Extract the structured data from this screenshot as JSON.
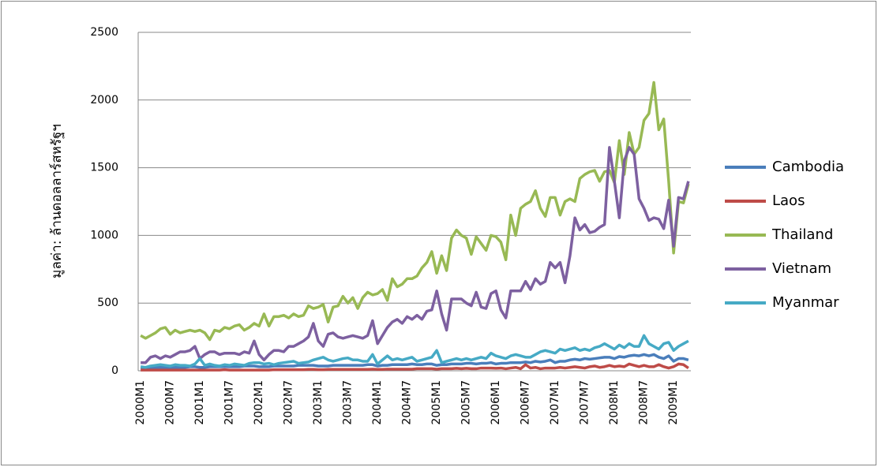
{
  "chart_data": {
    "type": "line",
    "y_label": "มูลค่า: ล้านดอลลาร์สหรัฐฯ",
    "categories": [
      "2000M1",
      null,
      null,
      null,
      null,
      null,
      "2000M7",
      null,
      null,
      null,
      null,
      null,
      "2001M1",
      null,
      null,
      null,
      null,
      null,
      "2001M7",
      null,
      null,
      null,
      null,
      null,
      "2002M1",
      null,
      null,
      null,
      null,
      null,
      "2002M7",
      null,
      null,
      null,
      null,
      null,
      "2003M1",
      null,
      null,
      null,
      null,
      null,
      "2003M7",
      null,
      null,
      null,
      null,
      null,
      "2004M1",
      null,
      null,
      null,
      null,
      null,
      "2004M7",
      null,
      null,
      null,
      null,
      null,
      "2005M1",
      null,
      null,
      null,
      null,
      null,
      "2005M7",
      null,
      null,
      null,
      null,
      null,
      "2006M1",
      null,
      null,
      null,
      null,
      null,
      "2006M7",
      null,
      null,
      null,
      null,
      null,
      "2007M1",
      null,
      null,
      null,
      null,
      null,
      "2007M7",
      null,
      null,
      null,
      null,
      null,
      "2008M1",
      null,
      null,
      null,
      null,
      null,
      "2008M7",
      null,
      null,
      null,
      null,
      null,
      "2009M1",
      null,
      null,
      null
    ],
    "series": [
      {
        "name": "Cambodia",
        "color": "#4a7ebb",
        "values": [
          20,
          20,
          20,
          25,
          25,
          25,
          20,
          25,
          25,
          25,
          30,
          30,
          25,
          25,
          30,
          30,
          30,
          30,
          30,
          30,
          30,
          35,
          35,
          35,
          30,
          30,
          30,
          35,
          35,
          35,
          35,
          35,
          40,
          40,
          40,
          40,
          35,
          35,
          35,
          40,
          40,
          40,
          40,
          40,
          40,
          40,
          45,
          45,
          35,
          40,
          40,
          45,
          45,
          45,
          45,
          50,
          45,
          45,
          50,
          50,
          40,
          45,
          45,
          50,
          50,
          50,
          55,
          55,
          50,
          55,
          55,
          60,
          50,
          55,
          55,
          60,
          60,
          60,
          65,
          60,
          70,
          65,
          70,
          80,
          60,
          70,
          70,
          80,
          85,
          80,
          90,
          85,
          90,
          95,
          100,
          100,
          90,
          105,
          100,
          110,
          115,
          110,
          120,
          110,
          120,
          100,
          90,
          110,
          70,
          90,
          90,
          80
        ]
      },
      {
        "name": "Laos",
        "color": "#be4b48",
        "values": [
          5,
          5,
          5,
          5,
          5,
          5,
          5,
          5,
          5,
          5,
          5,
          5,
          5,
          5,
          5,
          5,
          5,
          8,
          5,
          5,
          5,
          5,
          5,
          5,
          5,
          5,
          5,
          8,
          8,
          8,
          8,
          8,
          8,
          8,
          10,
          10,
          8,
          8,
          10,
          10,
          10,
          10,
          10,
          10,
          10,
          10,
          10,
          12,
          10,
          10,
          12,
          12,
          12,
          12,
          12,
          12,
          15,
          15,
          15,
          15,
          12,
          15,
          15,
          15,
          18,
          15,
          18,
          15,
          15,
          20,
          20,
          20,
          18,
          20,
          15,
          20,
          25,
          15,
          45,
          20,
          25,
          15,
          20,
          20,
          20,
          25,
          20,
          25,
          30,
          25,
          20,
          30,
          35,
          25,
          30,
          40,
          30,
          35,
          30,
          50,
          40,
          30,
          40,
          30,
          30,
          45,
          30,
          20,
          30,
          50,
          45,
          20
        ]
      },
      {
        "name": "Thailand",
        "color": "#98b954",
        "values": [
          260,
          240,
          260,
          280,
          310,
          320,
          270,
          300,
          280,
          290,
          300,
          290,
          300,
          280,
          230,
          300,
          290,
          320,
          310,
          330,
          340,
          300,
          320,
          350,
          330,
          420,
          330,
          400,
          400,
          410,
          390,
          420,
          400,
          410,
          480,
          460,
          470,
          490,
          360,
          470,
          480,
          550,
          500,
          540,
          460,
          540,
          580,
          560,
          570,
          600,
          520,
          680,
          620,
          640,
          680,
          680,
          700,
          760,
          800,
          880,
          720,
          850,
          740,
          980,
          1040,
          1000,
          980,
          860,
          990,
          940,
          890,
          1000,
          990,
          950,
          820,
          1150,
          1000,
          1200,
          1230,
          1250,
          1330,
          1200,
          1140,
          1280,
          1280,
          1150,
          1250,
          1270,
          1250,
          1420,
          1450,
          1470,
          1480,
          1400,
          1470,
          1480,
          1390,
          1700,
          1450,
          1760,
          1600,
          1650,
          1850,
          1900,
          2130,
          1780,
          1860,
          1400,
          870,
          1250,
          1240,
          1380
        ]
      },
      {
        "name": "Vietnam",
        "color": "#7d60a0",
        "values": [
          60,
          60,
          100,
          110,
          90,
          110,
          100,
          120,
          140,
          140,
          150,
          180,
          90,
          120,
          140,
          140,
          120,
          130,
          130,
          130,
          120,
          140,
          130,
          220,
          120,
          80,
          120,
          150,
          150,
          140,
          180,
          180,
          200,
          220,
          250,
          350,
          220,
          180,
          270,
          280,
          250,
          240,
          250,
          260,
          250,
          240,
          260,
          370,
          200,
          260,
          320,
          360,
          380,
          350,
          400,
          380,
          410,
          380,
          440,
          450,
          590,
          420,
          300,
          530,
          530,
          530,
          500,
          480,
          580,
          470,
          460,
          570,
          590,
          450,
          390,
          590,
          590,
          590,
          660,
          600,
          680,
          640,
          660,
          800,
          760,
          800,
          650,
          850,
          1130,
          1040,
          1080,
          1020,
          1030,
          1060,
          1080,
          1650,
          1400,
          1130,
          1550,
          1650,
          1600,
          1270,
          1200,
          1110,
          1130,
          1120,
          1050,
          1260,
          920,
          1280,
          1270,
          1400
        ]
      },
      {
        "name": "Myanmar",
        "color": "#46aac5",
        "values": [
          30,
          25,
          35,
          40,
          45,
          40,
          35,
          45,
          40,
          40,
          35,
          50,
          90,
          40,
          50,
          40,
          35,
          45,
          40,
          50,
          45,
          40,
          55,
          60,
          60,
          50,
          55,
          45,
          55,
          60,
          65,
          70,
          55,
          60,
          65,
          80,
          90,
          100,
          80,
          70,
          80,
          90,
          95,
          80,
          80,
          70,
          70,
          120,
          50,
          80,
          110,
          80,
          90,
          80,
          90,
          100,
          70,
          80,
          90,
          100,
          150,
          60,
          70,
          80,
          90,
          80,
          90,
          80,
          90,
          100,
          90,
          130,
          110,
          100,
          90,
          110,
          120,
          110,
          100,
          100,
          120,
          140,
          150,
          140,
          130,
          160,
          150,
          160,
          170,
          150,
          160,
          150,
          170,
          180,
          200,
          180,
          160,
          190,
          170,
          200,
          180,
          180,
          260,
          200,
          180,
          160,
          200,
          210,
          150,
          180,
          200,
          220
        ]
      }
    ],
    "ylim": [
      0,
      2500
    ],
    "yticks": [
      0,
      500,
      1000,
      1500,
      2000,
      2500
    ],
    "grid": true,
    "legend": "right"
  }
}
